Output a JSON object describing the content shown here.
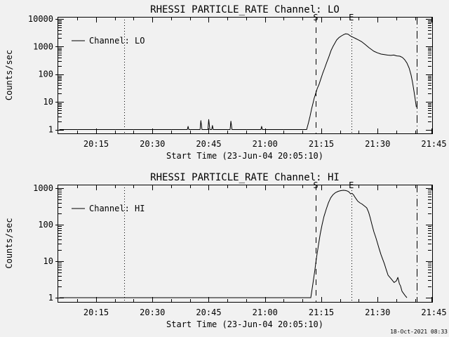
{
  "window": {
    "background_color": "#f1f1f1",
    "foreground_color": "#000000"
  },
  "footer": {
    "timestamp": "18-Oct-2021 08:33"
  },
  "chart_data": [
    {
      "type": "line",
      "title": "RHESSI PARTICLE_RATE Channel: LO",
      "xlabel": "Start Time (23-Jun-04 20:05:10)",
      "ylabel": "Counts/sec",
      "legend_label": "Channel: LO",
      "legend_position": "upper-left-inside",
      "yscale": "log",
      "ylim": [
        1,
        10000
      ],
      "grid": false,
      "x_unit": "minutes after 20:00 UT on 23-Jun-04",
      "xlim": [
        4.7,
        104.7
      ],
      "x_ticks": [
        {
          "t": 15,
          "label": "20:15"
        },
        {
          "t": 30,
          "label": "20:30"
        },
        {
          "t": 45,
          "label": "20:45"
        },
        {
          "t": 60,
          "label": "21:00"
        },
        {
          "t": 75,
          "label": "21:15"
        },
        {
          "t": 90,
          "label": "21:30"
        },
        {
          "t": 105,
          "label": "21:45"
        }
      ],
      "y_ticks": [
        {
          "v": 1,
          "label": "1"
        },
        {
          "v": 10,
          "label": "10"
        },
        {
          "v": 100,
          "label": "100"
        },
        {
          "v": 1000,
          "label": "1000"
        },
        {
          "v": 10000,
          "label": "10000"
        }
      ],
      "markers": [
        {
          "t": 22.5,
          "style": "dotted",
          "label": ""
        },
        {
          "t": 73.5,
          "style": "dashed",
          "label": "S"
        },
        {
          "t": 83.0,
          "style": "dotted",
          "label": "E"
        },
        {
          "t": 100.4,
          "style": "dashdot",
          "label": ""
        }
      ],
      "series": [
        {
          "name": "Channel: LO",
          "points": [
            [
              5.2,
              1
            ],
            [
              15,
              1
            ],
            [
              25,
              1
            ],
            [
              35,
              1
            ],
            [
              39.3,
              1
            ],
            [
              39.5,
              1.3
            ],
            [
              39.7,
              1
            ],
            [
              42.7,
              1
            ],
            [
              42.9,
              2.1
            ],
            [
              43.2,
              1
            ],
            [
              44.8,
              1
            ],
            [
              45.0,
              2.3
            ],
            [
              45.3,
              1
            ],
            [
              45.8,
              1
            ],
            [
              46.0,
              1.4
            ],
            [
              46.2,
              1
            ],
            [
              50.7,
              1
            ],
            [
              50.9,
              2.0
            ],
            [
              51.2,
              1
            ],
            [
              58.9,
              1
            ],
            [
              59.1,
              1.3
            ],
            [
              59.3,
              1
            ],
            [
              71.1,
              1
            ],
            [
              71.6,
              1.8
            ],
            [
              72.0,
              3
            ],
            [
              72.4,
              5.5
            ],
            [
              72.8,
              9
            ],
            [
              73.1,
              13.5
            ],
            [
              73.5,
              20
            ],
            [
              73.9,
              30
            ],
            [
              74.4,
              43
            ],
            [
              74.9,
              70
            ],
            [
              75.4,
              110
            ],
            [
              75.9,
              166
            ],
            [
              76.4,
              260
            ],
            [
              77.0,
              420
            ],
            [
              77.6,
              720
            ],
            [
              78.1,
              1000
            ],
            [
              78.6,
              1320
            ],
            [
              79.1,
              1730
            ],
            [
              79.7,
              2100
            ],
            [
              80.4,
              2450
            ],
            [
              81.0,
              2720
            ],
            [
              81.5,
              2900
            ],
            [
              82.1,
              2820
            ],
            [
              82.8,
              2400
            ],
            [
              83.5,
              2150
            ],
            [
              84.2,
              1940
            ],
            [
              85.0,
              1700
            ],
            [
              85.8,
              1480
            ],
            [
              86.6,
              1210
            ],
            [
              87.7,
              910
            ],
            [
              89.0,
              676
            ],
            [
              90.0,
              590
            ],
            [
              90.9,
              535
            ],
            [
              91.8,
              510
            ],
            [
              92.7,
              490
            ],
            [
              93.5,
              478
            ],
            [
              94.3,
              492
            ],
            [
              95.1,
              460
            ],
            [
              95.9,
              450
            ],
            [
              96.6,
              405
            ],
            [
              97.2,
              335
            ],
            [
              97.8,
              255
            ],
            [
              98.4,
              166
            ],
            [
              98.9,
              95
            ],
            [
              99.3,
              51
            ],
            [
              99.7,
              24
            ],
            [
              100.0,
              13
            ],
            [
              100.3,
              6.5
            ]
          ]
        }
      ]
    },
    {
      "type": "line",
      "title": "RHESSI PARTICLE_RATE Channel: HI",
      "xlabel": "Start Time (23-Jun-04 20:05:10)",
      "ylabel": "Counts/sec",
      "legend_label": "Channel: HI",
      "legend_position": "upper-left-inside",
      "yscale": "log",
      "ylim": [
        1,
        1000
      ],
      "grid": false,
      "x_unit": "minutes after 20:00 UT on 23-Jun-04",
      "xlim": [
        4.7,
        104.7
      ],
      "x_ticks": [
        {
          "t": 15,
          "label": "20:15"
        },
        {
          "t": 30,
          "label": "20:30"
        },
        {
          "t": 45,
          "label": "20:45"
        },
        {
          "t": 60,
          "label": "21:00"
        },
        {
          "t": 75,
          "label": "21:15"
        },
        {
          "t": 90,
          "label": "21:30"
        },
        {
          "t": 105,
          "label": "21:45"
        }
      ],
      "y_ticks": [
        {
          "v": 1,
          "label": "1"
        },
        {
          "v": 10,
          "label": "10"
        },
        {
          "v": 100,
          "label": "100"
        },
        {
          "v": 1000,
          "label": "1000"
        }
      ],
      "markers": [
        {
          "t": 22.5,
          "style": "dotted",
          "label": ""
        },
        {
          "t": 73.5,
          "style": "dashed",
          "label": "S"
        },
        {
          "t": 83.0,
          "style": "dotted",
          "label": "E"
        },
        {
          "t": 100.4,
          "style": "dashdot",
          "label": ""
        }
      ],
      "series": [
        {
          "name": "Channel: HI",
          "points": [
            [
              5.2,
              1
            ],
            [
              20,
              1
            ],
            [
              40,
              1
            ],
            [
              60,
              1
            ],
            [
              72.2,
              1
            ],
            [
              72.7,
              2.2
            ],
            [
              73.2,
              5
            ],
            [
              73.7,
              12
            ],
            [
              74.2,
              26
            ],
            [
              74.7,
              55
            ],
            [
              75.2,
              100
            ],
            [
              75.7,
              165
            ],
            [
              76.3,
              265
            ],
            [
              76.9,
              400
            ],
            [
              77.5,
              545
            ],
            [
              78.1,
              660
            ],
            [
              78.8,
              755
            ],
            [
              79.5,
              820
            ],
            [
              80.2,
              858
            ],
            [
              80.9,
              875
            ],
            [
              81.5,
              862
            ],
            [
              82.0,
              830
            ],
            [
              82.4,
              780
            ],
            [
              82.8,
              700
            ],
            [
              83.2,
              720
            ],
            [
              83.6,
              650
            ],
            [
              84.0,
              560
            ],
            [
              84.7,
              440
            ],
            [
              85.3,
              395
            ],
            [
              85.8,
              370
            ],
            [
              86.4,
              330
            ],
            [
              87.1,
              290
            ],
            [
              87.6,
              220
            ],
            [
              88.0,
              160
            ],
            [
              88.5,
              100
            ],
            [
              89.0,
              64
            ],
            [
              89.5,
              45
            ],
            [
              89.9,
              33
            ],
            [
              90.4,
              22
            ],
            [
              90.9,
              15
            ],
            [
              91.8,
              8.5
            ],
            [
              92.3,
              5.8
            ],
            [
              92.8,
              4.1
            ],
            [
              93.7,
              3.2
            ],
            [
              94.4,
              2.6
            ],
            [
              95.0,
              2.9
            ],
            [
              95.4,
              3.6
            ],
            [
              95.8,
              2.4
            ],
            [
              96.1,
              2.1
            ],
            [
              96.5,
              1.5
            ],
            [
              97.3,
              1.15
            ],
            [
              97.8,
              1.0
            ]
          ]
        }
      ]
    }
  ]
}
